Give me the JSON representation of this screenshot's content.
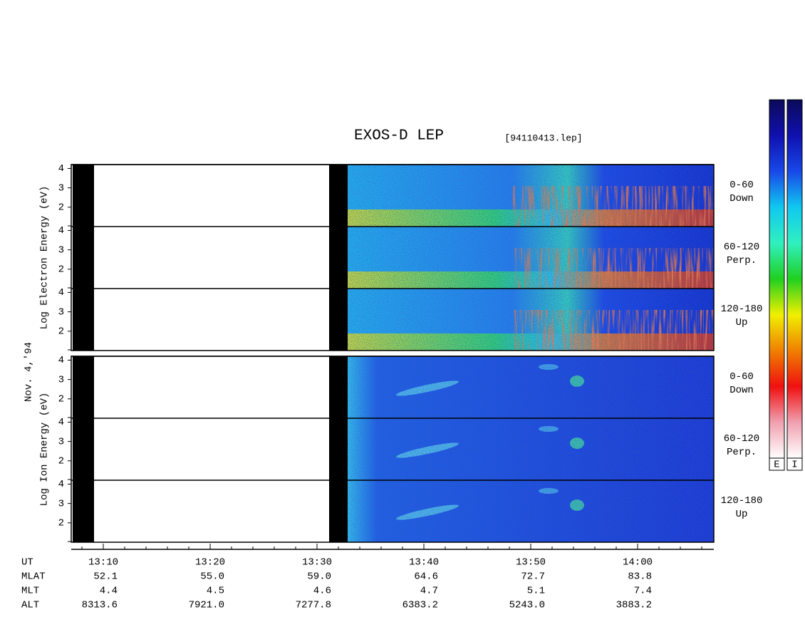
{
  "chart_data": {
    "type": "spectrogram",
    "title": "EXOS-D LEP",
    "subtitle": "[94110413.lep]",
    "date_label": "Nov. 4,'94",
    "ylim": [
      1,
      4.2
    ],
    "yticks": [
      2,
      3,
      4
    ],
    "panels": [
      {
        "ylabel": "Log  Electron  Energy (eV)",
        "subpanels": [
          {
            "pitch": "0-60",
            "direction": "Down"
          },
          {
            "pitch": "60-120",
            "direction": "Perp."
          },
          {
            "pitch": "120-180",
            "direction": "Up"
          }
        ]
      },
      {
        "ylabel": "Log  Ion  Energy (eV)",
        "subpanels": [
          {
            "pitch": "0-60",
            "direction": "Down"
          },
          {
            "pitch": "60-120",
            "direction": "Perp."
          },
          {
            "pitch": "120-180",
            "direction": "Up"
          }
        ]
      }
    ],
    "x_rows": {
      "labels": [
        "UT",
        "MLAT",
        "MLT",
        "ALT"
      ],
      "columns": [
        [
          "13:10",
          "52.1",
          "4.4",
          "8313.6"
        ],
        [
          "13:20",
          "55.0",
          "4.5",
          "7921.0"
        ],
        [
          "13:30",
          "59.0",
          "4.6",
          "7277.8"
        ],
        [
          "13:40",
          "64.6",
          "4.7",
          "6383.2"
        ],
        [
          "13:50",
          "72.7",
          "5.1",
          "5243.0"
        ],
        [
          "14:00",
          "83.8",
          "7.4",
          "3883.2"
        ]
      ]
    },
    "colorbars": [
      {
        "label": "E"
      },
      {
        "label": "I"
      }
    ],
    "colorscale": [
      "#0a0a5a",
      "#1010b0",
      "#1848e8",
      "#10c8f0",
      "#30f0c0",
      "#20d020",
      "#f0f000",
      "#f08000",
      "#f01010",
      "#f0a0b0",
      "#ffffff"
    ]
  }
}
